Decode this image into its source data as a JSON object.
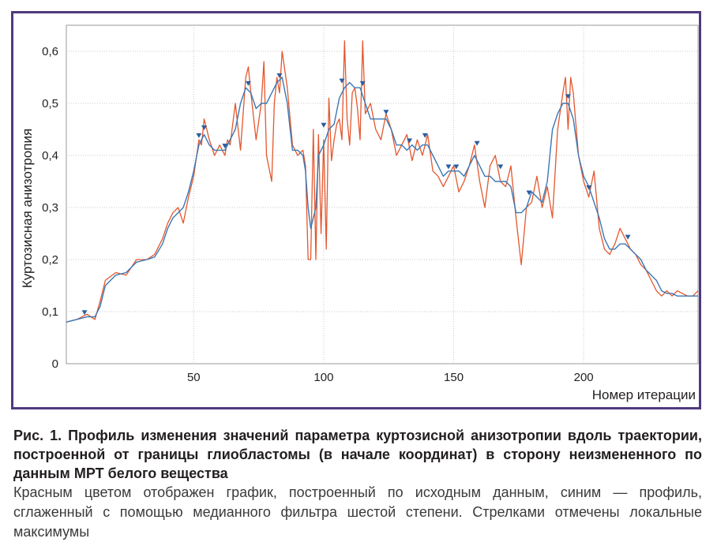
{
  "chart_data": {
    "type": "line",
    "title": "",
    "xlabel": "Номер итерации",
    "ylabel": "Куртозисная анизотропия",
    "xlim": [
      1,
      244
    ],
    "ylim": [
      0,
      0.65
    ],
    "xticks": [
      50,
      100,
      150,
      200
    ],
    "xtick_labels": [
      "50",
      "100",
      "150",
      "200"
    ],
    "yticks": [
      0,
      0.1,
      0.2,
      0.3,
      0.4,
      0.5,
      0.6
    ],
    "ytick_labels": [
      "0",
      "0,1",
      "0,2",
      "0,3",
      "0,4",
      "0,5",
      "0,6"
    ],
    "grid": true,
    "colors": {
      "raw": "#e4572e",
      "smooth": "#3a78b5",
      "marker": "#2a5fa0",
      "frame": "#4f3a7d"
    },
    "series": [
      {
        "role": "raw",
        "x": [
          1,
          5,
          9,
          12,
          14,
          16,
          20,
          24,
          28,
          32,
          35,
          38,
          40,
          42,
          44,
          46,
          48,
          50,
          52,
          53,
          54,
          56,
          58,
          60,
          62,
          63,
          64,
          66,
          68,
          70,
          71,
          72,
          74,
          76,
          77,
          78,
          80,
          81,
          82,
          83,
          84,
          86,
          88,
          90,
          92,
          93,
          94,
          95,
          96,
          97,
          98,
          99,
          100,
          101,
          102,
          103,
          104,
          105,
          106,
          107,
          108,
          109,
          110,
          111,
          112,
          113,
          114,
          115,
          116,
          118,
          120,
          122,
          124,
          126,
          128,
          130,
          132,
          134,
          136,
          138,
          140,
          142,
          144,
          146,
          148,
          150,
          152,
          154,
          156,
          158,
          160,
          162,
          164,
          166,
          168,
          170,
          172,
          174,
          176,
          178,
          180,
          182,
          184,
          186,
          188,
          190,
          192,
          193,
          194,
          195,
          196,
          198,
          200,
          202,
          204,
          206,
          208,
          210,
          212,
          214,
          216,
          218,
          220,
          222,
          224,
          226,
          228,
          230,
          232,
          234,
          236,
          238,
          240,
          242,
          244
        ],
        "y": [
          0.08,
          0.085,
          0.095,
          0.085,
          0.12,
          0.16,
          0.175,
          0.17,
          0.2,
          0.2,
          0.21,
          0.24,
          0.27,
          0.29,
          0.3,
          0.27,
          0.32,
          0.36,
          0.43,
          0.42,
          0.47,
          0.43,
          0.4,
          0.42,
          0.4,
          0.43,
          0.42,
          0.5,
          0.41,
          0.55,
          0.57,
          0.52,
          0.43,
          0.5,
          0.58,
          0.4,
          0.35,
          0.5,
          0.55,
          0.52,
          0.6,
          0.53,
          0.42,
          0.4,
          0.41,
          0.38,
          0.2,
          0.2,
          0.45,
          0.2,
          0.44,
          0.25,
          0.43,
          0.22,
          0.51,
          0.39,
          0.43,
          0.46,
          0.47,
          0.43,
          0.62,
          0.47,
          0.42,
          0.52,
          0.53,
          0.49,
          0.43,
          0.62,
          0.48,
          0.5,
          0.45,
          0.43,
          0.48,
          0.45,
          0.4,
          0.42,
          0.44,
          0.39,
          0.43,
          0.4,
          0.44,
          0.37,
          0.36,
          0.34,
          0.36,
          0.38,
          0.33,
          0.35,
          0.38,
          0.42,
          0.35,
          0.3,
          0.38,
          0.4,
          0.35,
          0.34,
          0.38,
          0.28,
          0.19,
          0.3,
          0.31,
          0.36,
          0.3,
          0.34,
          0.28,
          0.45,
          0.52,
          0.55,
          0.45,
          0.55,
          0.52,
          0.4,
          0.35,
          0.32,
          0.37,
          0.26,
          0.22,
          0.21,
          0.23,
          0.26,
          0.24,
          0.22,
          0.21,
          0.19,
          0.18,
          0.16,
          0.14,
          0.13,
          0.14,
          0.13,
          0.14,
          0.135,
          0.13,
          0.13,
          0.14
        ]
      },
      {
        "role": "smooth",
        "x": [
          1,
          5,
          9,
          12,
          14,
          16,
          20,
          24,
          28,
          32,
          35,
          38,
          40,
          42,
          44,
          46,
          48,
          50,
          52,
          54,
          56,
          58,
          60,
          62,
          64,
          66,
          68,
          70,
          72,
          74,
          76,
          78,
          80,
          82,
          84,
          86,
          88,
          90,
          92,
          93,
          94,
          95,
          96,
          97,
          98,
          100,
          102,
          104,
          106,
          108,
          110,
          112,
          114,
          116,
          118,
          120,
          122,
          124,
          126,
          128,
          130,
          132,
          134,
          136,
          138,
          140,
          142,
          144,
          146,
          148,
          150,
          152,
          154,
          156,
          158,
          160,
          162,
          164,
          166,
          168,
          170,
          172,
          174,
          176,
          178,
          180,
          182,
          184,
          186,
          188,
          190,
          192,
          194,
          196,
          198,
          200,
          202,
          204,
          206,
          208,
          210,
          212,
          214,
          216,
          218,
          220,
          222,
          224,
          226,
          228,
          230,
          232,
          234,
          236,
          238,
          240,
          242,
          244
        ],
        "y": [
          0.08,
          0.085,
          0.09,
          0.09,
          0.11,
          0.15,
          0.17,
          0.175,
          0.195,
          0.2,
          0.205,
          0.23,
          0.26,
          0.28,
          0.29,
          0.3,
          0.33,
          0.37,
          0.42,
          0.44,
          0.42,
          0.41,
          0.41,
          0.41,
          0.43,
          0.45,
          0.5,
          0.53,
          0.52,
          0.49,
          0.5,
          0.5,
          0.52,
          0.54,
          0.55,
          0.5,
          0.41,
          0.41,
          0.4,
          0.37,
          0.3,
          0.26,
          0.28,
          0.3,
          0.4,
          0.42,
          0.45,
          0.46,
          0.51,
          0.53,
          0.54,
          0.53,
          0.53,
          0.5,
          0.47,
          0.47,
          0.47,
          0.47,
          0.45,
          0.42,
          0.42,
          0.41,
          0.42,
          0.41,
          0.42,
          0.42,
          0.4,
          0.38,
          0.36,
          0.37,
          0.37,
          0.37,
          0.36,
          0.38,
          0.4,
          0.38,
          0.36,
          0.36,
          0.35,
          0.35,
          0.35,
          0.34,
          0.29,
          0.29,
          0.3,
          0.33,
          0.32,
          0.31,
          0.35,
          0.45,
          0.48,
          0.5,
          0.5,
          0.47,
          0.4,
          0.36,
          0.34,
          0.31,
          0.28,
          0.24,
          0.22,
          0.22,
          0.23,
          0.23,
          0.22,
          0.21,
          0.2,
          0.18,
          0.17,
          0.16,
          0.14,
          0.135,
          0.135,
          0.13,
          0.13,
          0.13,
          0.13,
          0.13
        ]
      }
    ],
    "markers": {
      "role": "local_maxima",
      "x": [
        8,
        52,
        54,
        62,
        71,
        83,
        100,
        107,
        115,
        124,
        133,
        139,
        148,
        151,
        159,
        168,
        179,
        194,
        202,
        217
      ],
      "y": [
        0.095,
        0.435,
        0.45,
        0.415,
        0.535,
        0.55,
        0.455,
        0.54,
        0.535,
        0.48,
        0.425,
        0.435,
        0.375,
        0.375,
        0.42,
        0.375,
        0.325,
        0.51,
        0.335,
        0.24
      ]
    }
  },
  "caption": {
    "title": "Рис. 1. Профиль изменения значений параметра куртозисной анизотропии вдоль траектории, построенной от границы глиобластомы (в начале координат) в сторону неизмененного по данным МРТ белого вещества",
    "text": "Красным цветом отображен график, построенный по исходным данным, синим — профиль, сглаженный с помощью медианного фильтра шестой степени. Стрелками отмечены локальные максимумы"
  }
}
